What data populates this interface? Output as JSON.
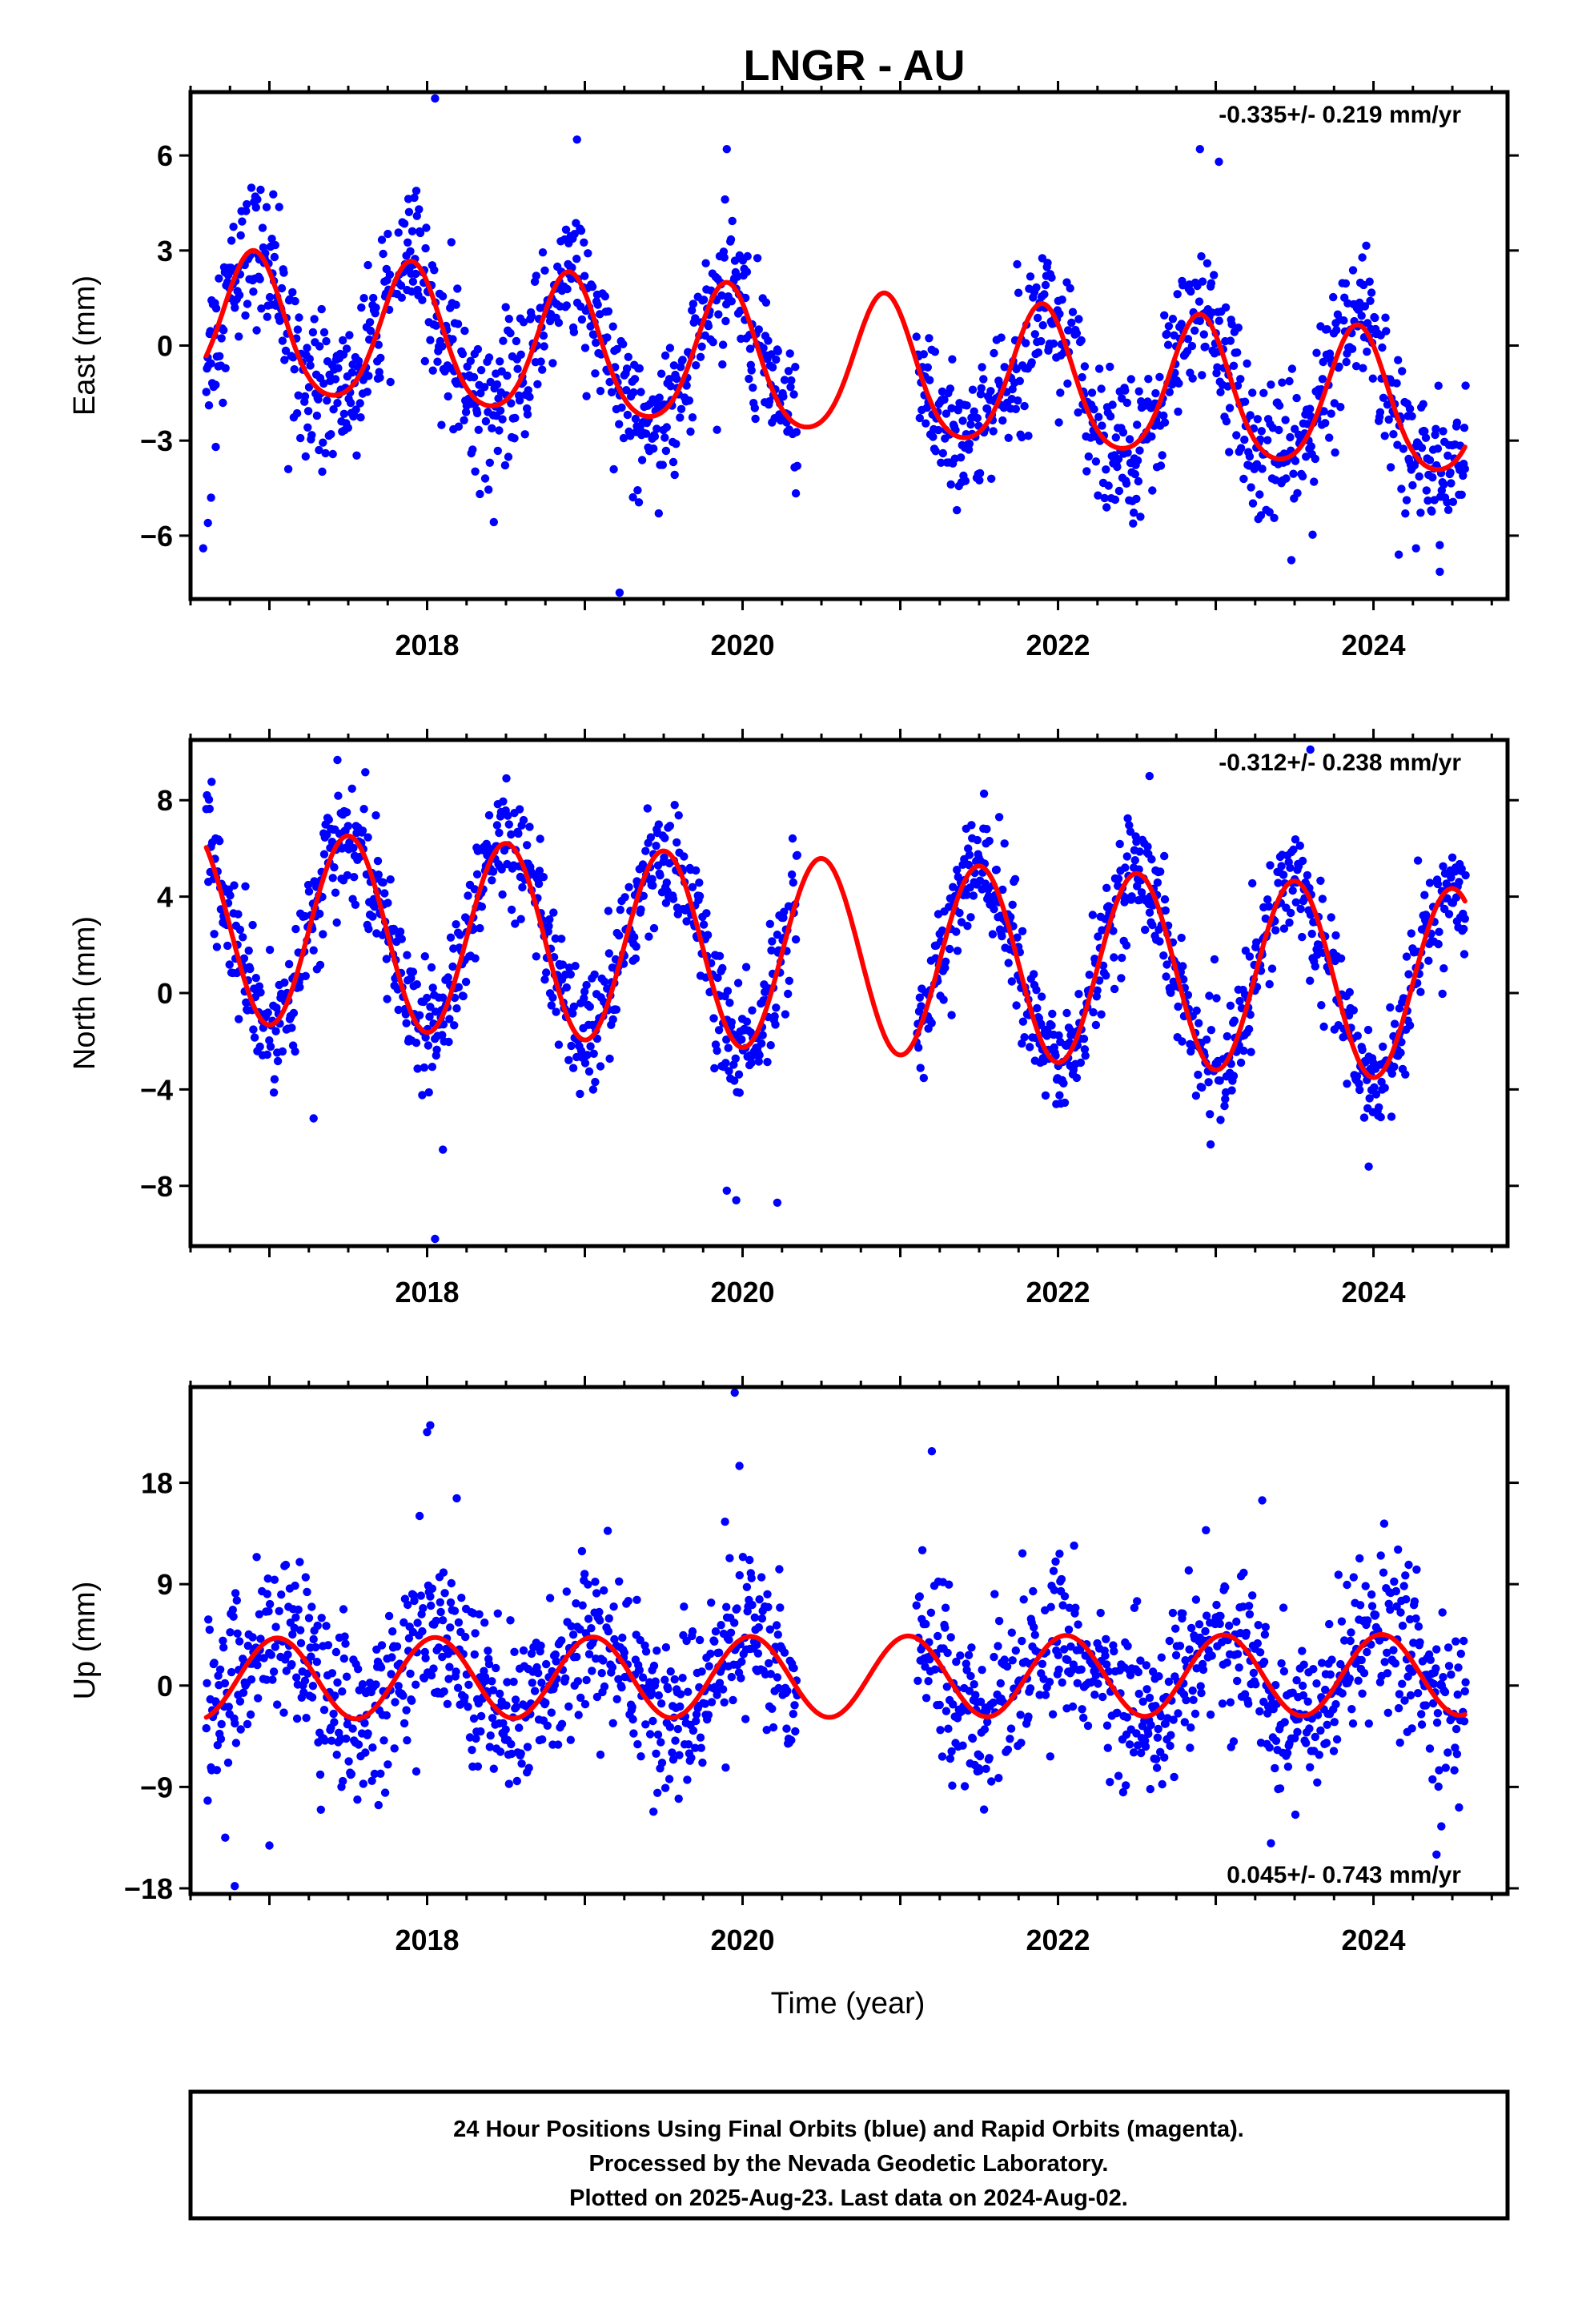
{
  "title": "LNGR - AU",
  "colors": {
    "points": "#0000ff",
    "fit": "#ff0000",
    "frame": "#000000"
  },
  "xlabel": "Time (year)",
  "footer": {
    "line1": "24 Hour Positions Using Final Orbits (blue) and Rapid Orbits (magenta).",
    "line2": "Processed by the Nevada Geodetic Laboratory.",
    "line3": "Plotted on 2025-Aug-23. Last data on 2024-Aug-02."
  },
  "chart_data": [
    {
      "type": "scatter",
      "component": "east",
      "ylabel": "East (mm)",
      "rate_text": "-0.335+/- 0.219 mm/yr",
      "xlim": [
        2016.5,
        2024.85
      ],
      "ylim": [
        -8,
        8
      ],
      "yticks": [
        -6,
        -3,
        0,
        3,
        6
      ],
      "yticklabels": [
        "−6",
        "−3",
        "0",
        "3",
        "6"
      ],
      "xticks": [
        2018,
        2020,
        2022,
        2024
      ],
      "xticklabels": [
        "2018",
        "2020",
        "2022",
        "2024"
      ],
      "trend": {
        "intercept_at_2016_6": 0.6,
        "slope_mm_per_yr": -0.335
      },
      "fit": {
        "amplitude": 2.2,
        "peak_phase_yr": 0.9,
        "semiannual_amplitude": 0.3,
        "x_start": 2016.6,
        "x_end": 2024.58
      },
      "scatter_sd": 1.1,
      "gaps": [
        [
          2020.35,
          2021.1
        ]
      ],
      "observations": {
        "x": [
          2016.58,
          2016.61,
          2016.63,
          2016.66,
          2017.12,
          2018.05,
          2018.95,
          2019.22,
          2019.9,
          2022.9,
          2023.02,
          2024.16,
          2024.27,
          2024.42
        ],
        "y": [
          -6.4,
          -5.6,
          -4.8,
          -3.2,
          -3.9,
          7.8,
          6.5,
          -7.8,
          6.2,
          6.2,
          5.8,
          -6.6,
          -6.4,
          -6.3
        ]
      }
    },
    {
      "type": "scatter",
      "component": "north",
      "ylabel": "North (mm)",
      "rate_text": "-0.312+/- 0.238 mm/yr",
      "xlim": [
        2016.5,
        2024.85
      ],
      "ylim": [
        -10.5,
        10.5
      ],
      "yticks": [
        -8,
        -4,
        0,
        4,
        8
      ],
      "yticklabels": [
        "−8",
        "−4",
        "0",
        "4",
        "8"
      ],
      "xticks": [
        2018,
        2020,
        2022,
        2024
      ],
      "xticklabels": [
        "2018",
        "2020",
        "2022",
        "2024"
      ],
      "trend": {
        "intercept_at_2016_6": 2.8,
        "slope_mm_per_yr": -0.312
      },
      "fit": {
        "amplitude": 4.0,
        "peak_phase_yr": 0.5,
        "semiannual_amplitude": 0.0,
        "x_start": 2016.6,
        "x_end": 2024.58
      },
      "scatter_sd": 1.2,
      "gaps": [
        [
          2020.35,
          2021.1
        ]
      ],
      "observations": {
        "x": [
          2017.28,
          2018.05,
          2018.1,
          2019.9,
          2019.96,
          2020.22,
          2022.58,
          2023.6,
          2023.97
        ],
        "y": [
          -5.2,
          -10.2,
          -6.5,
          -8.2,
          -8.6,
          -8.7,
          9.0,
          10.1,
          -7.2
        ]
      }
    },
    {
      "type": "scatter",
      "component": "up",
      "ylabel": "Up (mm)",
      "rate_text": "0.045+/- 0.743 mm/yr",
      "xlim": [
        2016.5,
        2024.85
      ],
      "ylim": [
        -18.5,
        26.5
      ],
      "yticks": [
        -18,
        -9,
        0,
        9,
        18
      ],
      "yticklabels": [
        "−18",
        "−9",
        "0",
        "9",
        "18"
      ],
      "xticks": [
        2018,
        2020,
        2022,
        2024
      ],
      "xticklabels": [
        "2018",
        "2020",
        "2022",
        "2024"
      ],
      "trend": {
        "intercept_at_2016_6": 0.6,
        "slope_mm_per_yr": 0.045
      },
      "fit": {
        "amplitude": 3.6,
        "peak_phase_yr": 0.05,
        "semiannual_amplitude": 0.0,
        "x_start": 2016.6,
        "x_end": 2024.58
      },
      "scatter_sd": 3.6,
      "gaps": [
        [
          2020.35,
          2021.1
        ]
      ],
      "observations": {
        "x": [
          2016.72,
          2016.78,
          2017.0,
          2018.0,
          2018.02,
          2019.95,
          2019.98,
          2021.2,
          2023.35,
          2024.4,
          2024.43
        ],
        "y": [
          -13.5,
          -17.8,
          -14.2,
          22.5,
          23.1,
          26.0,
          19.5,
          20.8,
          -14.0,
          -15.0,
          -12.5
        ]
      }
    }
  ]
}
